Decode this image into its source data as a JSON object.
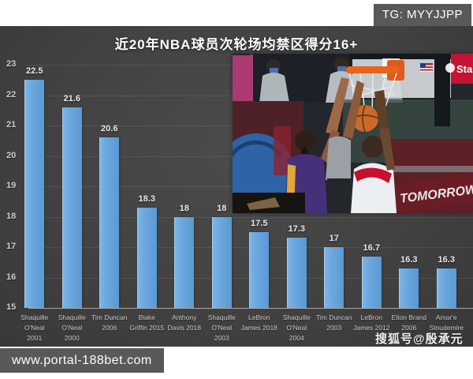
{
  "header": {
    "tg_badge": "TG: MYYJJPP"
  },
  "chart_data": {
    "type": "bar",
    "title": "近20年NBA球员次轮场均禁区得分16+",
    "categories": [
      "Shaquille\nO'Neal\n2001",
      "Shaquille\nO'Neal\n2000",
      "Tim Duncan\n2006",
      "Blake\nGriffin 2015",
      "Anthony\nDavis 2018",
      "Shaquille\nO'Neal\n2003",
      "LeBron\nJames 2018",
      "Shaquille\nO'Neal\n2004",
      "Tim Duncan\n2003",
      "LeBron\nJames 2012",
      "Elton Brand\n2006",
      "Amar'e\nStoudemire"
    ],
    "values": [
      22.5,
      21.6,
      20.6,
      18.3,
      18,
      18,
      17.5,
      17.3,
      17,
      16.7,
      16.3,
      16.3
    ],
    "value_labels": [
      "22.5",
      "21.6",
      "20.6",
      "18.3",
      "18",
      "18",
      "17.5",
      "17.3",
      "17",
      "16.7",
      "16.3",
      "16.3"
    ],
    "xlabel": "",
    "ylabel": "",
    "ylim": [
      15,
      23
    ],
    "ytick_step": 1,
    "grid": true,
    "legend_position": "none",
    "bar_color": "#6aa7de",
    "background_color": "#424242"
  },
  "photo": {
    "banner_text": "TOMORROW",
    "ad_text": "Sta"
  },
  "watermarks": {
    "sohu": "搜狐号@殷承元",
    "url": "www.portal-188bet.com"
  }
}
